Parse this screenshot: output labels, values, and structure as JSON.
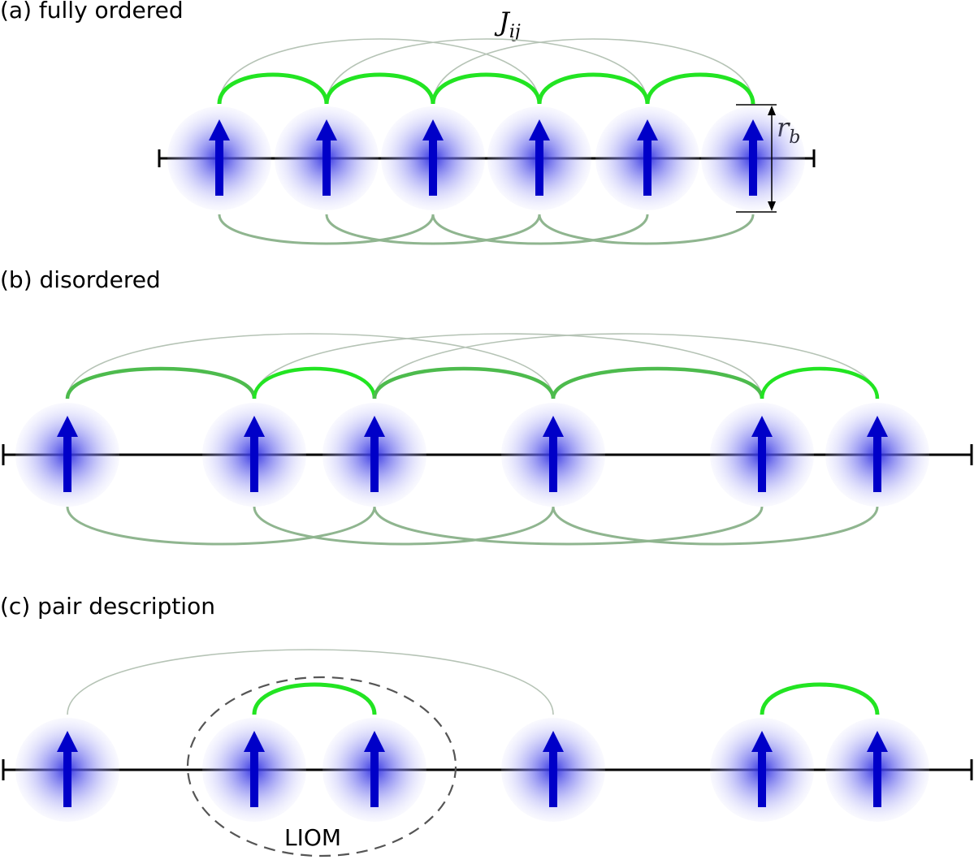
{
  "panels": [
    {
      "label": "(a) fully ordered",
      "coupling_symbol": "J",
      "coupling_subscript": "ij",
      "radius_symbol": "r",
      "radius_subscript": "b",
      "spins": 6,
      "spin_state": "up"
    },
    {
      "label": "(b) disordered",
      "spins": 6,
      "spin_state": "up"
    },
    {
      "label": "(c) pair description",
      "pair_label": "LIOM",
      "spins": 6,
      "spin_state": "up"
    }
  ],
  "colors": {
    "strong_coupling": "#22e422",
    "medium_coupling": "#4dbb4d",
    "weak_coupling": "#8fb58f",
    "faint_coupling": "#b5c3b5",
    "spin_arrow": "#0000c8",
    "spin_glow_center": "#3a3ae6",
    "axis": "#000000",
    "pair_boundary": "#555555"
  }
}
